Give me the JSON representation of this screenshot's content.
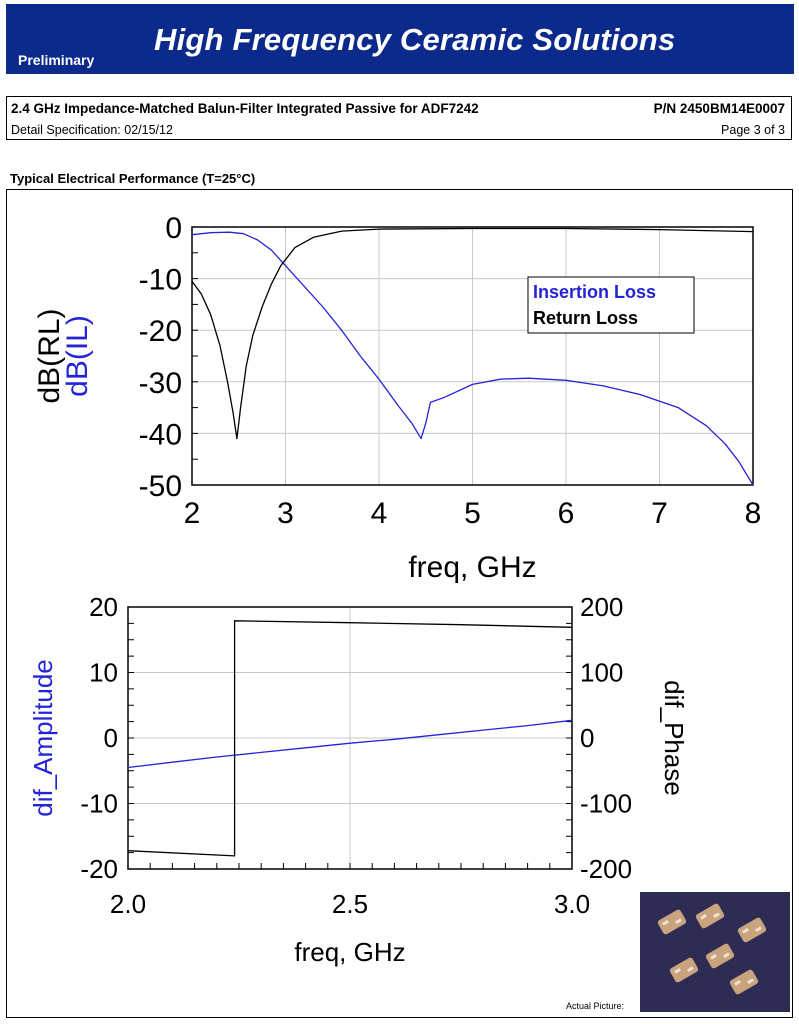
{
  "header": {
    "badge": "Preliminary",
    "title": "High Frequency Ceramic Solutions",
    "title_color": "#0b2a8c"
  },
  "spec": {
    "product": "2.4 GHz Impedance-Matched Balun-Filter Integrated Passive for ADF7242",
    "part_number": "P/N 2450BM14E0007",
    "detail": "Detail Specification:   02/15/12",
    "page": "Page 3 of 3"
  },
  "section_title": "Typical Electrical Performance (T=25°C)",
  "photo": {
    "caption": "Actual Picture:"
  },
  "chart_data": [
    {
      "type": "line",
      "xlabel": "freq, GHz",
      "ylabel": "dB(RL)",
      "ylabel2": "dB(IL)",
      "xlim": [
        2,
        8
      ],
      "ylim": [
        -50,
        0
      ],
      "xticks": [
        2,
        3,
        4,
        5,
        6,
        7,
        8
      ],
      "yticks": [
        0,
        -10,
        -20,
        -30,
        -40,
        -50
      ],
      "grid": true,
      "legend": [
        "Insertion Loss",
        "Return Loss"
      ],
      "legend_position": "top-right",
      "series": [
        {
          "name": "Insertion Loss",
          "color": "#2424d6",
          "x": [
            2.0,
            2.2,
            2.4,
            2.55,
            2.7,
            2.85,
            3.0,
            3.2,
            3.4,
            3.6,
            3.8,
            4.0,
            4.2,
            4.35,
            4.45,
            4.5,
            4.55,
            4.7,
            5.0,
            5.3,
            5.6,
            6.0,
            6.4,
            6.8,
            7.2,
            7.5,
            7.7,
            7.85,
            8.0
          ],
          "values": [
            -1.5,
            -1.1,
            -1.0,
            -1.3,
            -2.5,
            -4.5,
            -7.5,
            -11.5,
            -15.5,
            -20,
            -25,
            -29.5,
            -34.5,
            -38,
            -41,
            -38,
            -34,
            -33,
            -30.5,
            -29.5,
            -29.3,
            -29.7,
            -30.8,
            -32.5,
            -35,
            -38.5,
            -42,
            -45.5,
            -50
          ]
        },
        {
          "name": "Return Loss",
          "color": "#000000",
          "x": [
            2.0,
            2.1,
            2.2,
            2.3,
            2.38,
            2.44,
            2.48,
            2.52,
            2.58,
            2.65,
            2.75,
            2.85,
            2.95,
            3.1,
            3.3,
            3.6,
            4.0,
            5.0,
            6.0,
            7.0,
            8.0
          ],
          "values": [
            -10.5,
            -13,
            -17,
            -23,
            -30,
            -36,
            -41,
            -35,
            -27,
            -21,
            -15.5,
            -11,
            -7.5,
            -4,
            -2,
            -0.8,
            -0.4,
            -0.3,
            -0.3,
            -0.5,
            -0.9
          ]
        }
      ]
    },
    {
      "type": "line",
      "xlabel": "freq, GHz",
      "ylabel": "dif_Amplitude",
      "ylabel_right": "dif_Phase",
      "xlim": [
        2.0,
        3.0
      ],
      "ylim": [
        -20,
        20
      ],
      "ylim_right": [
        -200,
        200
      ],
      "xticks": [
        "2.0",
        "2.5",
        "3.0"
      ],
      "yticks": [
        20,
        10,
        0,
        -10,
        -20
      ],
      "yticks_right": [
        200,
        100,
        0,
        -100,
        -200
      ],
      "grid": true,
      "series": [
        {
          "name": "dif_Amplitude",
          "color": "#2424d6",
          "axis": "left",
          "x": [
            2.0,
            2.1,
            2.2,
            2.3,
            2.4,
            2.5,
            2.6,
            2.7,
            2.8,
            2.9,
            3.0
          ],
          "values": [
            -4.5,
            -3.7,
            -2.9,
            -2.2,
            -1.5,
            -0.8,
            -0.2,
            0.5,
            1.2,
            1.9,
            2.7
          ]
        },
        {
          "name": "dif_Phase",
          "color": "#000000",
          "axis": "right",
          "x": [
            2.0,
            2.24,
            2.24,
            2.5,
            2.75,
            3.0
          ],
          "values": [
            -172,
            -180,
            179,
            176,
            173,
            169
          ]
        }
      ]
    }
  ]
}
